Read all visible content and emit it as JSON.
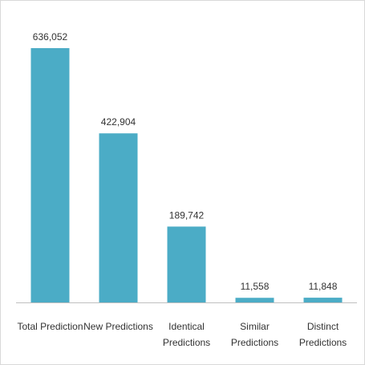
{
  "chart_data": {
    "type": "bar",
    "categories": [
      "Total Prediction",
      "New Predictions",
      "Identical\nPredictions",
      "Similar\nPredictions",
      "Distinct\nPredictions"
    ],
    "values": [
      636052,
      422904,
      189742,
      11558,
      11848
    ],
    "value_labels": [
      "636,052",
      "422,904",
      "189,742",
      "11,558",
      "11,848"
    ],
    "color": "#4bacc6"
  }
}
